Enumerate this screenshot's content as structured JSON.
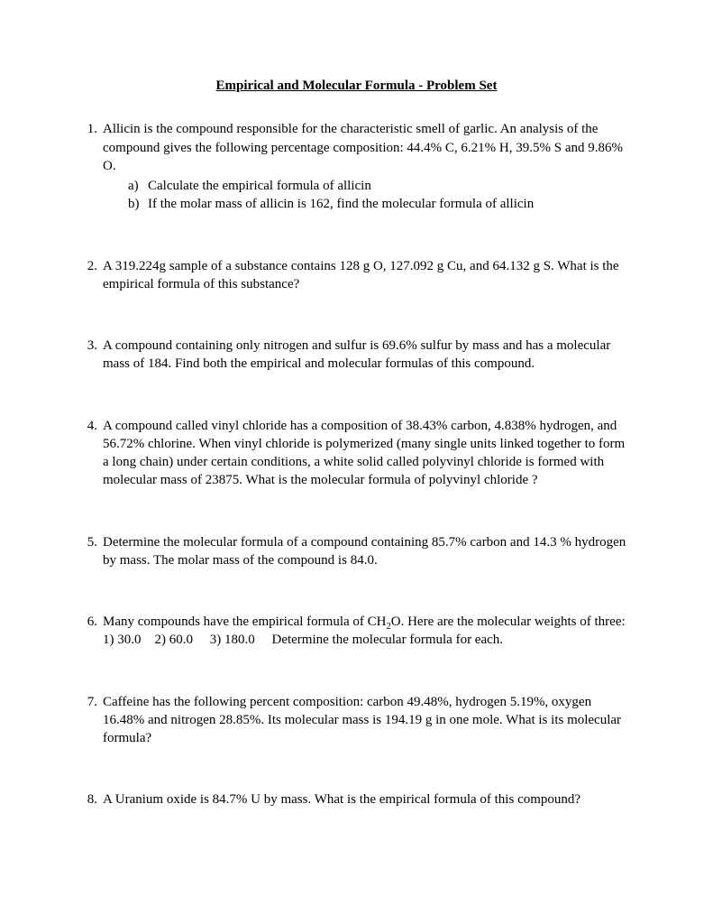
{
  "title": "Empirical and Molecular Formula - Problem Set",
  "problems": [
    {
      "num": "1.",
      "text": "Allicin is the compound responsible for the characteristic smell of garlic.  An analysis of the compound gives the following percentage composition:  44.4% C, 6.21% H, 39.5% S and 9.86% O.",
      "sub": [
        {
          "label": "a)",
          "text": "Calculate the empirical formula of allicin"
        },
        {
          "label": "b)",
          "text": "If the molar mass of allicin is 162, find the molecular formula of allicin"
        }
      ]
    },
    {
      "num": "2.",
      "text": "A 319.224g sample of a substance contains 128 g O, 127.092 g Cu, and 64.132 g S. What is the empirical formula of this substance?"
    },
    {
      "num": "3.",
      "text": "A compound containing only nitrogen and sulfur is 69.6% sulfur by mass and has a molecular mass of 184.  Find both the empirical and molecular formulas of this compound."
    },
    {
      "num": "4.",
      "text": "A compound called vinyl chloride has a composition of 38.43% carbon, 4.838% hydrogen, and 56.72% chlorine.  When vinyl chloride is polymerized (many single units linked together to form a long chain) under certain conditions, a white solid called polyvinyl chloride is formed with molecular mass of 23875.  What is the molecular formula of polyvinyl chloride ?"
    },
    {
      "num": "5.",
      "text": "Determine the molecular formula of a compound containing 85.7% carbon and 14.3 % hydrogen by mass.  The molar mass of the compound is 84.0."
    },
    {
      "num": "6.",
      "html": "Many compounds have the empirical formula of CH<sub>2</sub>O. Here are the molecular weights of three: 1) 30.0 &nbsp;&nbsp; 2) 60.0 &nbsp;&nbsp;&nbsp; 3) 180.0 &nbsp;&nbsp;&nbsp; Determine the molecular formula for each."
    },
    {
      "num": "7.",
      "text": "Caffeine has the following percent composition: carbon 49.48%, hydrogen 5.19%, oxygen 16.48% and nitrogen 28.85%. Its molecular mass is 194.19 g in one mole. What is its molecular formula?"
    },
    {
      "num": "8.",
      "text": "A Uranium oxide is 84.7% U by mass. What is the empirical formula of this compound?"
    }
  ]
}
